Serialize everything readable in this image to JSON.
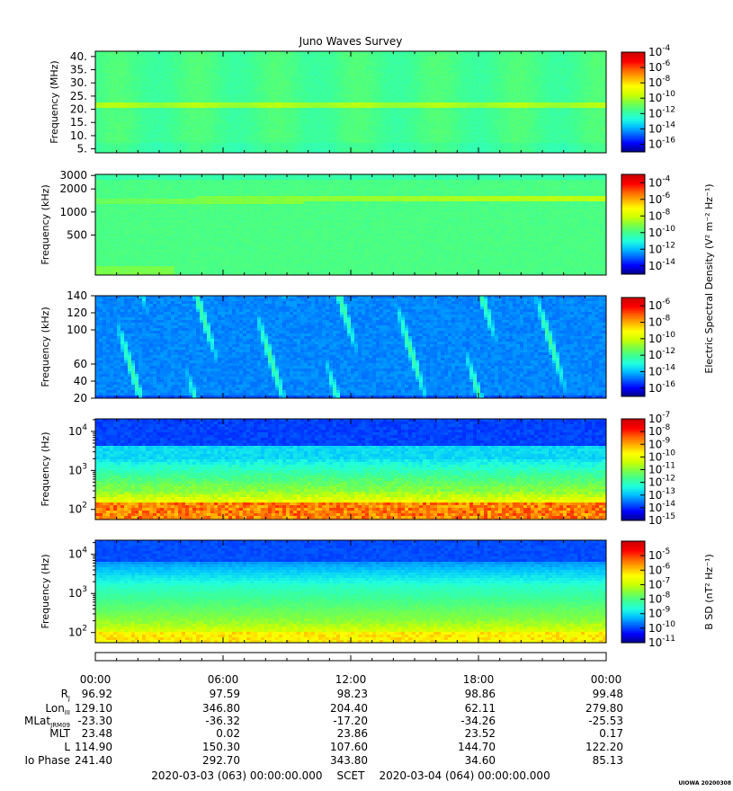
{
  "title": "Juno Waves Survey",
  "footer_label": "UIOWA 20200308",
  "colors": {
    "spectral": [
      "#00008f",
      "#0000ff",
      "#0060ff",
      "#00c0ff",
      "#20ffdf",
      "#40ff90",
      "#80ff40",
      "#d0ff00",
      "#ffff00",
      "#ffb000",
      "#ff6000",
      "#ff0000",
      "#d00000"
    ]
  },
  "chart_data": [
    {
      "type": "heatmap",
      "panel": "mhz",
      "ylabel": "Frequency (MHz)",
      "ylim": [
        3.5,
        42
      ],
      "yticks": [
        {
          "v": 5,
          "label": "5."
        },
        {
          "v": 10,
          "label": "10."
        },
        {
          "v": 15,
          "label": "15."
        },
        {
          "v": 20,
          "label": "20."
        },
        {
          "v": 25,
          "label": "25."
        },
        {
          "v": 30,
          "label": "30."
        },
        {
          "v": 35,
          "label": "35."
        },
        {
          "v": 40,
          "label": "40."
        }
      ],
      "colorbar": {
        "min_exp": -17,
        "max_exp": -4,
        "labels": [
          "-4",
          "-6",
          "-8",
          "-10",
          "-12",
          "-14",
          "-16"
        ]
      }
    },
    {
      "type": "heatmap",
      "panel": "khz_hf",
      "ylabel": "Frequency (kHz)",
      "yscale": "log",
      "ylim": [
        150,
        3100
      ],
      "yticks": [
        {
          "v": 500,
          "label": "500"
        },
        {
          "v": 1000,
          "label": "1000"
        },
        {
          "v": 2000,
          "label": "2000"
        },
        {
          "v": 3000,
          "label": "3000"
        }
      ],
      "colorbar": {
        "min_exp": -15,
        "max_exp": -3,
        "labels": [
          "-4",
          "-6",
          "-8",
          "-10",
          "-12",
          "-14"
        ]
      }
    },
    {
      "type": "heatmap",
      "panel": "khz_lf",
      "ylabel": "Frequency (kHz)",
      "ylim": [
        20,
        140
      ],
      "yticks": [
        {
          "v": 20,
          "label": "20"
        },
        {
          "v": 40,
          "label": "40"
        },
        {
          "v": 60,
          "label": "60"
        },
        {
          "v": 100,
          "label": "100"
        },
        {
          "v": 120,
          "label": "120"
        },
        {
          "v": 140,
          "label": "140"
        }
      ],
      "colorbar": {
        "min_exp": -17,
        "max_exp": -5,
        "labels": [
          "-6",
          "-8",
          "-10",
          "-12",
          "-14",
          "-16"
        ],
        "side_label": "Electric Spectral Density (V² m⁻² Hz⁻¹)"
      }
    },
    {
      "type": "heatmap",
      "panel": "hz_e",
      "ylabel": "Frequency (Hz)",
      "yscale": "log",
      "ylim": [
        55,
        21000
      ],
      "yticks": [
        {
          "exp": "2"
        },
        {
          "exp": "3"
        },
        {
          "exp": "4"
        }
      ],
      "colorbar": {
        "min_exp": -15,
        "max_exp": -7,
        "labels": [
          "-7",
          "-8",
          "-9",
          "-10",
          "-11",
          "-12",
          "-13",
          "-14",
          "-15"
        ]
      }
    },
    {
      "type": "heatmap",
      "panel": "hz_b",
      "ylabel": "Frequency (Hz)",
      "yscale": "log",
      "ylim": [
        55,
        23000
      ],
      "yticks": [
        {
          "exp": "2"
        },
        {
          "exp": "3"
        },
        {
          "exp": "4"
        }
      ],
      "colorbar": {
        "min_exp": -11,
        "max_exp": -4,
        "labels": [
          "-5",
          "-6",
          "-7",
          "-8",
          "-9",
          "-10",
          "-11"
        ],
        "side_label": "B SD (nT² Hz⁻¹)"
      }
    }
  ],
  "time_axis": {
    "labels": [
      "00:00",
      "06:00",
      "12:00",
      "18:00",
      "00:00"
    ],
    "start": "2020-03-03 (063) 00:00:00.000",
    "scet": "SCET",
    "end": "2020-03-04 (064) 00:00:00.000"
  },
  "ephemeris": [
    {
      "name": "R",
      "sub": "J",
      "values": [
        "96.92",
        "97.59",
        "98.23",
        "98.86",
        "99.48"
      ]
    },
    {
      "name": "Lon",
      "sub": "III",
      "values": [
        "129.10",
        "346.80",
        "204.40",
        "62.11",
        "279.80"
      ]
    },
    {
      "name": "MLat",
      "sub": "JRM09",
      "values": [
        "-23.30",
        "-36.32",
        "-17.20",
        "-34.26",
        "-25.53"
      ]
    },
    {
      "name": "MLT",
      "sub": "",
      "values": [
        "23.48",
        "0.02",
        "23.86",
        "23.52",
        "0.17"
      ]
    },
    {
      "name": "L",
      "sub": "",
      "values": [
        "114.90",
        "150.30",
        "107.60",
        "144.70",
        "122.20"
      ]
    },
    {
      "name": "Io Phase",
      "sub": "",
      "values": [
        "241.40",
        "292.70",
        "343.80",
        "34.60",
        "85.13"
      ]
    }
  ]
}
